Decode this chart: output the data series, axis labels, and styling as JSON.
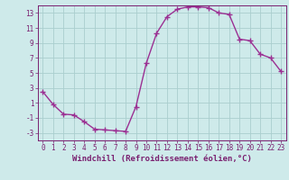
{
  "x": [
    0,
    1,
    2,
    3,
    4,
    5,
    6,
    7,
    8,
    9,
    10,
    11,
    12,
    13,
    14,
    15,
    16,
    17,
    18,
    19,
    20,
    21,
    22,
    23
  ],
  "y": [
    2.5,
    0.8,
    -0.5,
    -0.6,
    -1.5,
    -2.5,
    -2.6,
    -2.7,
    -2.8,
    0.5,
    6.3,
    10.3,
    12.5,
    13.5,
    13.8,
    13.8,
    13.7,
    13.0,
    12.8,
    9.5,
    9.3,
    7.5,
    7.0,
    5.2
  ],
  "line_color": "#9b3093",
  "marker": "+",
  "marker_size": 4,
  "marker_linewidth": 1.0,
  "line_width": 1.0,
  "background_color": "#ceeaea",
  "grid_color": "#aacece",
  "xlabel": "Windchill (Refroidissement éolien,°C)",
  "ylim": [
    -4,
    14
  ],
  "yticks": [
    -3,
    -1,
    1,
    3,
    5,
    7,
    9,
    11,
    13
  ],
  "xlim": [
    -0.5,
    23.5
  ],
  "xticks": [
    0,
    1,
    2,
    3,
    4,
    5,
    6,
    7,
    8,
    9,
    10,
    11,
    12,
    13,
    14,
    15,
    16,
    17,
    18,
    19,
    20,
    21,
    22,
    23
  ],
  "tick_color": "#7a2070",
  "label_color": "#7a2070",
  "xlabel_fontsize": 6.5,
  "tick_fontsize": 5.5,
  "spine_color": "#7a2070"
}
